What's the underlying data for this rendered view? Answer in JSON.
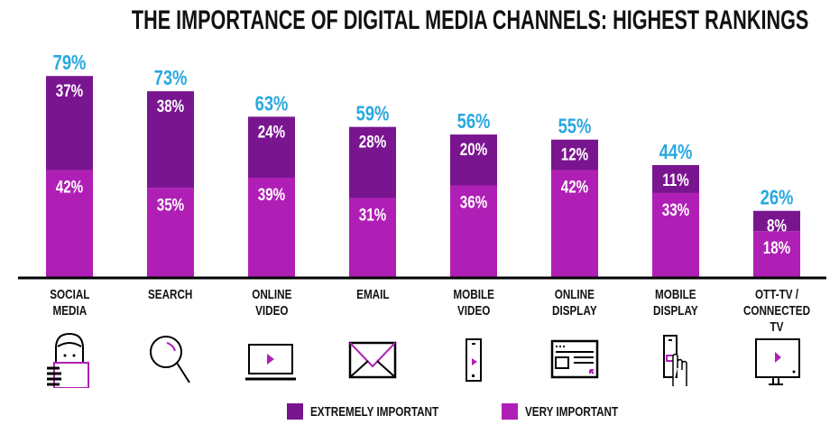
{
  "chart_data": {
    "type": "bar",
    "stacked": true,
    "title": "THE IMPORTANCE OF DIGITAL MEDIA CHANNELS: HIGHEST RANKINGS",
    "categories": [
      "SOCIAL\nMEDIA",
      "SEARCH",
      "ONLINE\nVIDEO",
      "EMAIL",
      "MOBILE\nVIDEO",
      "ONLINE\nDISPLAY",
      "MOBILE\nDISPLAY",
      "OTT-TV /\nCONNECTED TV"
    ],
    "icons": [
      "person-tablet-icon",
      "search-icon",
      "laptop-video-icon",
      "email-icon",
      "mobile-video-icon",
      "online-display-icon",
      "mobile-display-tap-icon",
      "connected-tv-icon"
    ],
    "totals": [
      79,
      73,
      63,
      59,
      56,
      55,
      44,
      26
    ],
    "series": [
      {
        "name": "EXTREMELY IMPORTANT",
        "color": "#7a1590",
        "values": [
          37,
          38,
          24,
          28,
          20,
          12,
          11,
          8
        ]
      },
      {
        "name": "VERY IMPORTANT",
        "color": "#b01fb5",
        "values": [
          42,
          35,
          39,
          31,
          36,
          42,
          33,
          18
        ]
      }
    ],
    "total_label_color": "#29a8e0",
    "ylim": [
      0,
      100
    ],
    "grid": false,
    "legend_position": "bottom"
  }
}
